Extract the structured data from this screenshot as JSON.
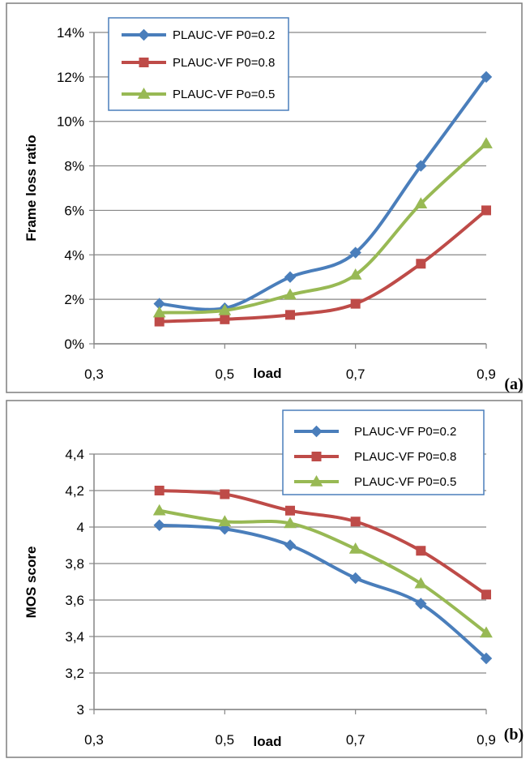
{
  "chart_data": [
    {
      "type": "line",
      "panel_label": "(a)",
      "xlabel": "load",
      "ylabel": "Frame loss ratio",
      "xlim": [
        0.3,
        0.9
      ],
      "ylim": [
        0,
        14
      ],
      "x_ticks": [
        0.3,
        0.5,
        0.7,
        0.9
      ],
      "x_tick_labels": [
        "0,3",
        "0,5",
        "0,7",
        "0,9"
      ],
      "y_ticks": [
        0,
        2,
        4,
        6,
        8,
        10,
        12,
        14
      ],
      "y_tick_labels": [
        "0%",
        "2%",
        "4%",
        "6%",
        "8%",
        "10%",
        "12%",
        "14%"
      ],
      "grid": "horizontal",
      "legend_position": "top-left",
      "x": [
        0.4,
        0.5,
        0.6,
        0.7,
        0.8,
        0.9
      ],
      "series": [
        {
          "name": "PLAUC-VF P0=0.2",
          "color": "#4a7ebb",
          "marker": "diamond",
          "values": [
            1.8,
            1.6,
            3.0,
            4.1,
            8.0,
            12.0
          ]
        },
        {
          "name": "PLAUC-VF P0=0.8",
          "color": "#be4b48",
          "marker": "square",
          "values": [
            1.0,
            1.1,
            1.3,
            1.8,
            3.6,
            6.0
          ]
        },
        {
          "name": "PLAUC-VF Po=0.5",
          "color": "#98b954",
          "marker": "triangle",
          "values": [
            1.4,
            1.5,
            2.2,
            3.1,
            6.3,
            9.0
          ]
        }
      ]
    },
    {
      "type": "line",
      "panel_label": "(b)",
      "xlabel": "load",
      "ylabel": "MOS score",
      "xlim": [
        0.3,
        0.9
      ],
      "ylim": [
        3,
        4.4
      ],
      "x_ticks": [
        0.3,
        0.5,
        0.7,
        0.9
      ],
      "x_tick_labels": [
        "0,3",
        "0,5",
        "0,7",
        "0,9"
      ],
      "y_ticks": [
        3,
        3.2,
        3.4,
        3.6,
        3.8,
        4,
        4.2,
        4.4
      ],
      "y_tick_labels": [
        "3",
        "3,2",
        "3,4",
        "3,6",
        "3,8",
        "4",
        "4,2",
        "4,4"
      ],
      "grid": "horizontal",
      "legend_position": "top-right",
      "x": [
        0.4,
        0.5,
        0.6,
        0.7,
        0.8,
        0.9
      ],
      "series": [
        {
          "name": "PLAUC-VF P0=0.2",
          "color": "#4a7ebb",
          "marker": "diamond",
          "values": [
            4.01,
            3.99,
            3.9,
            3.72,
            3.58,
            3.28
          ]
        },
        {
          "name": "PLAUC-VF P0=0.8",
          "color": "#be4b48",
          "marker": "square",
          "values": [
            4.2,
            4.18,
            4.09,
            4.03,
            3.87,
            3.63
          ]
        },
        {
          "name": "PLAUC-VF P0=0.5",
          "color": "#98b954",
          "marker": "triangle",
          "values": [
            4.09,
            4.03,
            4.02,
            3.88,
            3.69,
            3.42
          ]
        }
      ]
    }
  ]
}
